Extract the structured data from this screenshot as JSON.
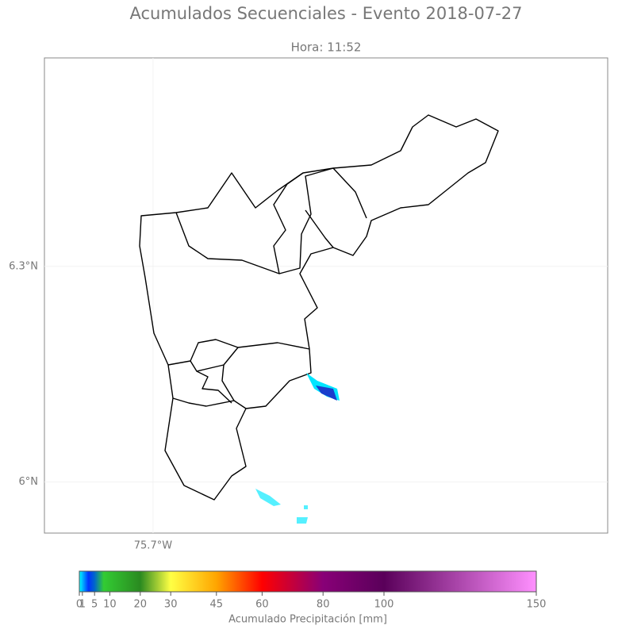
{
  "title": "Acumulados Secuenciales - Evento 2018-07-27",
  "subtitle": "Hora: 11:52",
  "map": {
    "xlim": [
      -75.851,
      -75.068
    ],
    "ylim": [
      5.929,
      6.59
    ],
    "xticks": [
      {
        "value": -75.7,
        "label": "75.7°W"
      }
    ],
    "yticks": [
      {
        "value": 6.3,
        "label": "6.3°N"
      },
      {
        "value": 6,
        "label": "6°N"
      }
    ],
    "grid": true
  },
  "colorbar": {
    "label": "Acumulado Precipitación [mm]",
    "lim": [
      0,
      150
    ],
    "ticks": [
      0,
      1,
      5,
      10,
      20,
      30,
      45,
      60,
      80,
      100,
      150
    ],
    "stops": [
      {
        "value": 0,
        "color": "#00ffff"
      },
      {
        "value": 3,
        "color": "#0033ff"
      },
      {
        "value": 5,
        "color": "#0066cc"
      },
      {
        "value": 8,
        "color": "#33cc33"
      },
      {
        "value": 20,
        "color": "#2a8a20"
      },
      {
        "value": 30,
        "color": "#ffff44"
      },
      {
        "value": 45,
        "color": "#ffa500"
      },
      {
        "value": 60,
        "color": "#ff0000"
      },
      {
        "value": 80,
        "color": "#880077"
      },
      {
        "value": 100,
        "color": "#5a005a"
      },
      {
        "value": 150,
        "color": "#ff90ff"
      }
    ]
  }
}
